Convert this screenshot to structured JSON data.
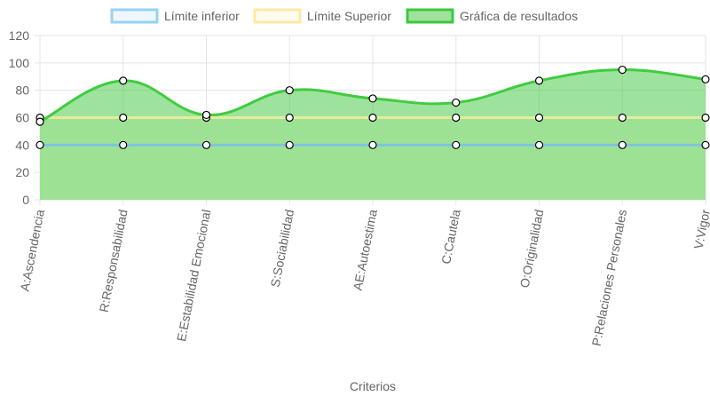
{
  "chart_data": {
    "type": "line",
    "xlabel": "Criterios",
    "ylabel": "",
    "ylim": [
      0,
      120
    ],
    "yticks": [
      0,
      20,
      40,
      60,
      80,
      100,
      120
    ],
    "grid": true,
    "legend_position": "top",
    "categories": [
      "A:Ascendencia",
      "R:Responsabilidad",
      "E:Estabilidad Emocional",
      "S:Sociabilidad",
      "AE:Autoestima",
      "C:Cautela",
      "O:Originalidad",
      "P:Relaciones Personales",
      "V:Vigor"
    ],
    "series": [
      {
        "name": "Límite inferior",
        "values": [
          40,
          40,
          40,
          40,
          40,
          40,
          40,
          40,
          40
        ],
        "border_color": "#9ad0f5",
        "line_color": "#7fc4e0",
        "fill_color": "#eef7fd",
        "area": true
      },
      {
        "name": "Límite Superior",
        "values": [
          60,
          60,
          60,
          60,
          60,
          60,
          60,
          60,
          60
        ],
        "border_color": "#fde9a6",
        "line_color": "#e7ec9a",
        "fill_color": "#fffbee",
        "area": true
      },
      {
        "name": "Gráfica de resultados",
        "values": [
          57,
          87,
          62,
          80,
          74,
          71,
          87,
          95,
          88
        ],
        "border_color": "#3cc83c",
        "line_color": "#3fcc3f",
        "fill_color": "rgba(60,200,60,0.5)",
        "area": true
      }
    ],
    "grid_color": "#e5e5e5",
    "point_fill": "#ffffff",
    "point_stroke": "#000000"
  }
}
